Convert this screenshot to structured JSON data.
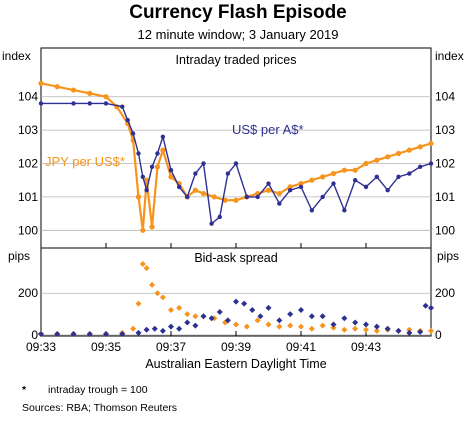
{
  "chart_data": {
    "type": "line",
    "title": "Currency Flash Episode",
    "subtitle": "12 minute window; 3 January 2019",
    "xlabel": "Australian Eastern Daylight Time",
    "x_ticks": [
      "09:33",
      "09:35",
      "09:37",
      "09:39",
      "09:41",
      "09:43"
    ],
    "xlim": [
      "09:33",
      "09:45"
    ],
    "colors": {
      "usd_aud": "#2e3192",
      "jpy_usd": "#f7941d"
    },
    "panels": [
      {
        "name": "Intraday traded prices",
        "unit_left": "index",
        "unit_right": "index",
        "ylim": [
          99.5,
          104.8
        ],
        "y_ticks": [
          100,
          101,
          102,
          103,
          104
        ],
        "series": [
          {
            "name": "US$ per A$*",
            "x": [
              "09:33:00",
              "09:34:00",
              "09:34:30",
              "09:35:00",
              "09:35:30",
              "09:35:40",
              "09:35:50",
              "09:36:00",
              "09:36:08",
              "09:36:15",
              "09:36:25",
              "09:36:35",
              "09:36:45",
              "09:37:00",
              "09:37:15",
              "09:37:30",
              "09:37:45",
              "09:38:00",
              "09:38:15",
              "09:38:30",
              "09:38:45",
              "09:39:00",
              "09:39:20",
              "09:39:40",
              "09:40:00",
              "09:40:20",
              "09:40:40",
              "09:41:00",
              "09:41:20",
              "09:41:40",
              "09:42:00",
              "09:42:20",
              "09:42:40",
              "09:43:00",
              "09:43:20",
              "09:43:40",
              "09:44:00",
              "09:44:20",
              "09:44:40",
              "09:45:00"
            ],
            "values": [
              103.8,
              103.8,
              103.8,
              103.8,
              103.7,
              103.3,
              102.9,
              102.3,
              101.6,
              101.2,
              101.9,
              102.3,
              102.8,
              101.8,
              101.3,
              101.0,
              101.7,
              102.0,
              100.2,
              100.4,
              101.7,
              102.0,
              101.0,
              101.0,
              101.4,
              100.8,
              101.2,
              101.3,
              100.6,
              101.0,
              101.4,
              100.6,
              101.5,
              101.3,
              101.6,
              101.2,
              101.6,
              101.7,
              101.9,
              102.0
            ]
          },
          {
            "name": "JPY per US$*",
            "x": [
              "09:33:00",
              "09:33:30",
              "09:34:00",
              "09:34:30",
              "09:35:00",
              "09:35:20",
              "09:35:40",
              "09:35:50",
              "09:36:00",
              "09:36:08",
              "09:36:15",
              "09:36:25",
              "09:36:35",
              "09:36:45",
              "09:37:00",
              "09:37:15",
              "09:37:30",
              "09:37:45",
              "09:38:00",
              "09:38:20",
              "09:38:40",
              "09:39:00",
              "09:39:20",
              "09:39:40",
              "09:40:00",
              "09:40:20",
              "09:40:40",
              "09:41:00",
              "09:41:20",
              "09:41:40",
              "09:42:00",
              "09:42:20",
              "09:42:40",
              "09:43:00",
              "09:43:20",
              "09:43:40",
              "09:44:00",
              "09:44:20",
              "09:44:40",
              "09:45:00"
            ],
            "values": [
              104.4,
              104.3,
              104.2,
              104.1,
              104.0,
              103.7,
              103.2,
              102.7,
              101.0,
              100.0,
              101.5,
              100.1,
              101.9,
              102.4,
              101.6,
              101.4,
              101.0,
              101.2,
              101.1,
              101.0,
              100.9,
              100.9,
              101.0,
              101.1,
              101.2,
              101.1,
              101.3,
              101.4,
              101.5,
              101.6,
              101.7,
              101.8,
              101.8,
              102.0,
              102.1,
              102.2,
              102.3,
              102.4,
              102.5,
              102.6
            ]
          }
        ],
        "annotations": [
          {
            "text": "US$ per A$*",
            "series": 0
          },
          {
            "text": "JPY per US$*",
            "series": 1
          }
        ]
      },
      {
        "name": "Bid-ask spread",
        "unit_left": "pips",
        "unit_right": "pips",
        "ylim": [
          0,
          340
        ],
        "y_ticks": [
          0,
          200
        ],
        "series": [
          {
            "name": "US$ per A$*",
            "x": [
              "09:33:00",
              "09:33:30",
              "09:34:00",
              "09:34:30",
              "09:35:00",
              "09:35:30",
              "09:36:00",
              "09:36:15",
              "09:36:30",
              "09:36:45",
              "09:37:00",
              "09:37:15",
              "09:37:30",
              "09:37:45",
              "09:38:00",
              "09:38:15",
              "09:38:30",
              "09:38:45",
              "09:39:00",
              "09:39:15",
              "09:39:30",
              "09:39:45",
              "09:40:00",
              "09:40:20",
              "09:40:40",
              "09:41:00",
              "09:41:20",
              "09:41:40",
              "09:42:00",
              "09:42:20",
              "09:42:40",
              "09:43:00",
              "09:43:20",
              "09:43:40",
              "09:44:00",
              "09:44:20",
              "09:44:40",
              "09:44:50",
              "09:45:00"
            ],
            "values": [
              5,
              5,
              5,
              5,
              5,
              5,
              10,
              25,
              30,
              20,
              40,
              30,
              60,
              45,
              90,
              80,
              110,
              70,
              160,
              150,
              120,
              90,
              130,
              70,
              100,
              120,
              90,
              90,
              50,
              80,
              60,
              50,
              40,
              30,
              20,
              10,
              15,
              140,
              130
            ]
          },
          {
            "name": "JPY per US$*",
            "x": [
              "09:33:00",
              "09:33:30",
              "09:34:00",
              "09:34:30",
              "09:35:00",
              "09:35:30",
              "09:35:50",
              "09:36:00",
              "09:36:08",
              "09:36:15",
              "09:36:25",
              "09:36:35",
              "09:36:45",
              "09:37:00",
              "09:37:15",
              "09:37:30",
              "09:37:45",
              "09:38:00",
              "09:38:20",
              "09:38:40",
              "09:39:00",
              "09:39:20",
              "09:39:40",
              "09:40:00",
              "09:40:20",
              "09:40:40",
              "09:41:00",
              "09:41:20",
              "09:41:40",
              "09:42:00",
              "09:42:20",
              "09:42:40",
              "09:43:00",
              "09:43:20",
              "09:43:40",
              "09:44:00",
              "09:44:20",
              "09:44:40",
              "09:45:00"
            ],
            "values": [
              5,
              5,
              5,
              5,
              5,
              10,
              30,
              150,
              340,
              320,
              240,
              200,
              180,
              120,
              130,
              100,
              90,
              90,
              80,
              60,
              50,
              40,
              70,
              50,
              40,
              45,
              40,
              30,
              45,
              35,
              25,
              30,
              25,
              20,
              25,
              20,
              25,
              20,
              20
            ]
          }
        ]
      }
    ]
  },
  "footnotes": {
    "marker": "*",
    "note": "intraday trough = 100",
    "sources": "Sources: RBA; Thomson Reuters"
  }
}
